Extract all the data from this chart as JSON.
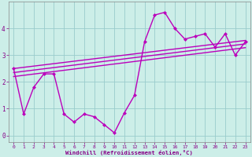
{
  "x_main": [
    0,
    1,
    2,
    3,
    4,
    5,
    6,
    7,
    8,
    9,
    10,
    11,
    12,
    13,
    14,
    15,
    16,
    17,
    18,
    19,
    20,
    21,
    22,
    23
  ],
  "y_main": [
    2.5,
    0.8,
    1.8,
    2.3,
    2.3,
    0.8,
    0.5,
    0.8,
    0.7,
    0.4,
    0.1,
    0.85,
    1.5,
    3.5,
    4.5,
    4.6,
    4.0,
    3.6,
    3.7,
    3.8,
    3.3,
    3.8,
    3.0,
    3.5
  ],
  "reg_lines": [
    [
      2.5,
      3.55
    ],
    [
      2.35,
      3.42
    ],
    [
      2.2,
      3.28
    ]
  ],
  "line_color": "#bb00bb",
  "bg_color": "#cceee8",
  "grid_color": "#99cccc",
  "xlabel": "Windchill (Refroidissement éolien,°C)",
  "xlim": [
    -0.5,
    23.5
  ],
  "ylim": [
    -0.25,
    5.0
  ],
  "yticks": [
    0,
    1,
    2,
    3,
    4
  ],
  "xticks": [
    0,
    1,
    2,
    3,
    4,
    5,
    6,
    7,
    8,
    9,
    10,
    11,
    12,
    13,
    14,
    15,
    16,
    17,
    18,
    19,
    20,
    21,
    22,
    23
  ],
  "marker": "D",
  "markersize": 2.5,
  "linewidth": 1.0
}
